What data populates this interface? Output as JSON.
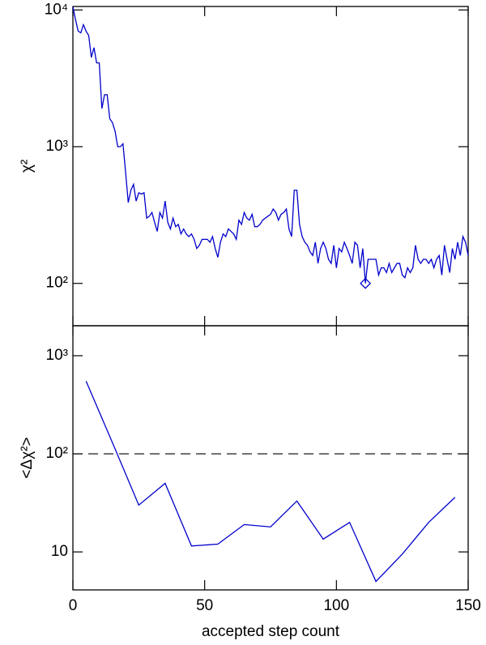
{
  "chart_data": [
    {
      "type": "line",
      "ylabel": "χ²",
      "log_y": true,
      "color": "#0000cc",
      "x": [
        0,
        1,
        2,
        3,
        4,
        5,
        6,
        7,
        8,
        9,
        10,
        11,
        12,
        13,
        14,
        15,
        16,
        17,
        18,
        19,
        20,
        21,
        22,
        23,
        24,
        25,
        26,
        27,
        28,
        29,
        30,
        31,
        32,
        33,
        34,
        35,
        36,
        37,
        38,
        39,
        40,
        41,
        42,
        43,
        44,
        45,
        46,
        47,
        48,
        49,
        50,
        51,
        52,
        53,
        54,
        55,
        56,
        57,
        58,
        59,
        60,
        61,
        62,
        63,
        64,
        65,
        66,
        67,
        68,
        69,
        70,
        71,
        72,
        73,
        74,
        75,
        76,
        77,
        78,
        79,
        80,
        81,
        82,
        83,
        84,
        85,
        86,
        87,
        88,
        89,
        90,
        91,
        92,
        93,
        94,
        95,
        96,
        97,
        98,
        99,
        100,
        101,
        102,
        103,
        104,
        105,
        106,
        107,
        108,
        109,
        110,
        111,
        112,
        113,
        114,
        115,
        116,
        117,
        118,
        119,
        120,
        121,
        122,
        123,
        124,
        125,
        126,
        127,
        128,
        129,
        130,
        131,
        132,
        133,
        134,
        135,
        136,
        137,
        138,
        139,
        140,
        141,
        142,
        143,
        144,
        145,
        146,
        147,
        148,
        149,
        150
      ],
      "values": [
        10500,
        8500,
        7000,
        6800,
        7800,
        7000,
        6500,
        4500,
        5300,
        4100,
        4100,
        1900,
        2400,
        2400,
        1600,
        1500,
        1300,
        1000,
        1000,
        1050,
        650,
        390,
        480,
        530,
        400,
        460,
        450,
        460,
        300,
        310,
        330,
        280,
        240,
        330,
        300,
        400,
        280,
        250,
        300,
        260,
        270,
        230,
        250,
        230,
        220,
        230,
        210,
        180,
        190,
        210,
        210,
        210,
        200,
        220,
        180,
        155,
        200,
        230,
        220,
        250,
        240,
        230,
        210,
        290,
        270,
        330,
        300,
        290,
        320,
        260,
        260,
        270,
        290,
        300,
        310,
        320,
        350,
        330,
        290,
        320,
        330,
        350,
        250,
        220,
        480,
        480,
        270,
        220,
        200,
        190,
        170,
        160,
        200,
        140,
        180,
        200,
        180,
        150,
        140,
        190,
        130,
        180,
        170,
        200,
        180,
        160,
        140,
        200,
        190,
        130,
        180,
        100,
        150,
        150,
        150,
        150,
        115,
        130,
        130,
        120,
        140,
        120,
        130,
        140,
        140,
        115,
        110,
        130,
        120,
        130,
        190,
        150,
        140,
        150,
        150,
        140,
        150,
        130,
        150,
        160,
        115,
        190,
        150,
        120,
        180,
        150,
        200,
        160,
        220,
        200,
        160
      ],
      "highlight": {
        "x": 111,
        "value": 100
      },
      "xlim": [
        0,
        150
      ],
      "xticks": [
        0,
        50,
        100,
        150
      ],
      "show_xtick_labels": false,
      "ylim": [
        49,
        10600
      ],
      "yticks": [
        {
          "value": 100,
          "label": "10²"
        },
        {
          "value": 1000,
          "label": "10³"
        },
        {
          "value": 10000,
          "label": "10⁴"
        }
      ]
    },
    {
      "type": "line",
      "ylabel": "<Δχ²>",
      "xlabel": "accepted step count",
      "log_y": true,
      "color": "#0000cc",
      "x": [
        5,
        15,
        25,
        35,
        45,
        55,
        65,
        75,
        85,
        95,
        105,
        115,
        125,
        135,
        145
      ],
      "values": [
        550,
        130,
        30,
        50,
        11.5,
        12,
        19,
        18,
        33,
        13.5,
        20,
        5,
        9.5,
        20,
        36
      ],
      "reference_line": 100,
      "reference_style": "dashed",
      "xlim": [
        0,
        150
      ],
      "xticks": [
        0,
        50,
        100,
        150
      ],
      "show_xtick_labels": true,
      "ylim": [
        4.1,
        2020
      ],
      "yticks": [
        10,
        {
          "value": 100,
          "label": "10²"
        },
        {
          "value": 1000,
          "label": "10³"
        }
      ]
    }
  ]
}
